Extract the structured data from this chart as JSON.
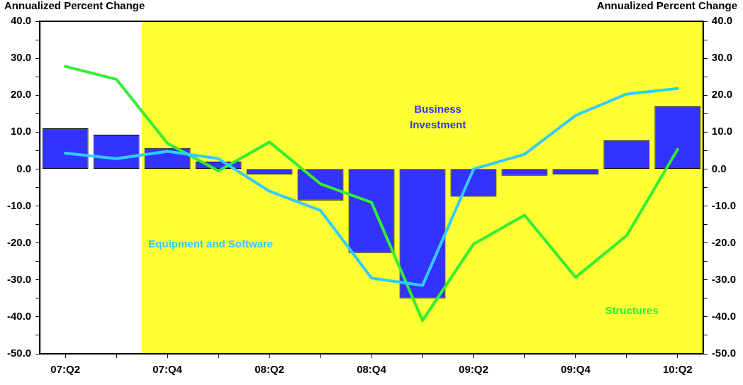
{
  "chart_data": {
    "type": "bar",
    "ylabel": "Annualized Percent Change",
    "y2label": "Annualized Percent Change",
    "categories": [
      "07:Q2",
      null,
      "07:Q4",
      null,
      "08:Q2",
      null,
      "08:Q4",
      null,
      "09:Q2",
      null,
      "09:Q4",
      null,
      "10:Q2"
    ],
    "series": [
      {
        "name": "Business Investment",
        "color": "#3333ff",
        "values": [
          11.0,
          9.3,
          5.7,
          2.0,
          -1.5,
          -8.5,
          -22.7,
          -35.0,
          -7.5,
          -1.8,
          -1.5,
          7.8,
          17.0
        ]
      },
      {
        "name": "Equipment and Software",
        "type": "line",
        "color": "#33ccff",
        "values": [
          4.3,
          2.8,
          4.8,
          2.8,
          -6.0,
          -11.2,
          -29.5,
          -31.5,
          0.0,
          4.0,
          14.5,
          20.3,
          21.8
        ]
      },
      {
        "name": "Structures",
        "type": "line",
        "color": "#33ee33",
        "values": [
          27.8,
          24.3,
          7.0,
          -0.5,
          7.3,
          -4.0,
          -9.0,
          -41.0,
          -20.3,
          -12.5,
          -29.3,
          -18.0,
          5.3
        ]
      }
    ],
    "ylim": [
      -50,
      40
    ],
    "yticks": [
      {
        "value": -50,
        "label": "-50.0"
      },
      {
        "value": -45,
        "label": null
      },
      {
        "value": -40,
        "label": "-40.0"
      },
      {
        "value": -35,
        "label": null
      },
      {
        "value": -30,
        "label": "-30.0"
      },
      {
        "value": -25,
        "label": null
      },
      {
        "value": -20,
        "label": "-20.0"
      },
      {
        "value": -15,
        "label": null
      },
      {
        "value": -10,
        "label": "-10.0"
      },
      {
        "value": -5,
        "label": null
      },
      {
        "value": 0,
        "label": "0.0"
      },
      {
        "value": 5,
        "label": null
      },
      {
        "value": 10,
        "label": "10.0"
      },
      {
        "value": 15,
        "label": null
      },
      {
        "value": 20,
        "label": "20.0"
      },
      {
        "value": 25,
        "label": null
      },
      {
        "value": 30,
        "label": "30.0"
      },
      {
        "value": 35,
        "label": null
      },
      {
        "value": 40,
        "label": "40.0"
      }
    ],
    "y2lim": [
      -50,
      40
    ],
    "y2ticks": [
      {
        "value": -50,
        "label": "-50.0"
      },
      {
        "value": -45,
        "label": null
      },
      {
        "value": -40,
        "label": "-40.0"
      },
      {
        "value": -35,
        "label": null
      },
      {
        "value": -30,
        "label": "-30.0"
      },
      {
        "value": -25,
        "label": null
      },
      {
        "value": -20,
        "label": "-20.0"
      },
      {
        "value": -15,
        "label": null
      },
      {
        "value": -10,
        "label": "-10.0"
      },
      {
        "value": -5,
        "label": null
      },
      {
        "value": 0,
        "label": "0.0"
      },
      {
        "value": 5,
        "label": null
      },
      {
        "value": 10,
        "label": "10.0"
      },
      {
        "value": 15,
        "label": null
      },
      {
        "value": 20,
        "label": "20.0"
      },
      {
        "value": 25,
        "label": null
      },
      {
        "value": 30,
        "label": "30.0"
      },
      {
        "value": 35,
        "label": null
      },
      {
        "value": 40,
        "label": "40.0"
      }
    ],
    "bands": [
      {
        "axis": "x",
        "from": "07:Q4",
        "to": "10:Q2",
        "color": "#ffff33"
      }
    ],
    "grid": false,
    "legend": false,
    "marker": "none",
    "line_style": "solid"
  }
}
